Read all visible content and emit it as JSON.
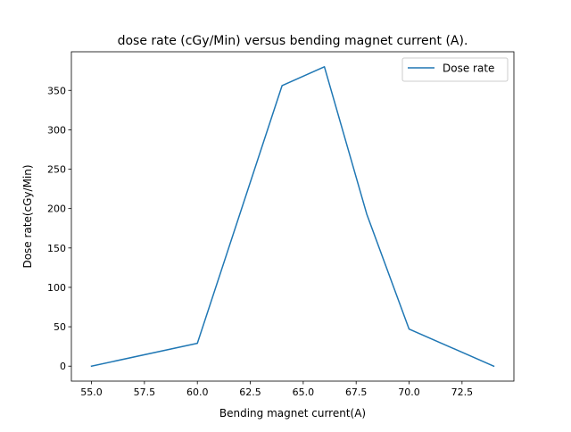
{
  "chart_data": {
    "type": "line",
    "title": "dose rate (cGy/Min) versus bending magnet current (A).",
    "xlabel": "Bending magnet current(A)",
    "ylabel": "Dose rate(cGy/Min)",
    "xlim": [
      54.05,
      74.95
    ],
    "ylim": [
      -19,
      399
    ],
    "x_ticks": [
      55.0,
      57.5,
      60.0,
      62.5,
      65.0,
      67.5,
      70.0,
      72.5
    ],
    "x_tick_labels": [
      "55.0",
      "57.5",
      "60.0",
      "62.5",
      "65.0",
      "67.5",
      "70.0",
      "72.5"
    ],
    "y_ticks": [
      0,
      50,
      100,
      150,
      200,
      250,
      300,
      350
    ],
    "y_tick_labels": [
      "0",
      "50",
      "100",
      "150",
      "200",
      "250",
      "300",
      "350"
    ],
    "grid": false,
    "legend_position": "top-right",
    "series": [
      {
        "name": "Dose rate",
        "color": "#1f77b4",
        "x": [
          55,
          60,
          64,
          66,
          68,
          70,
          74
        ],
        "y": [
          0,
          29,
          356,
          380,
          193,
          47,
          0
        ]
      }
    ]
  }
}
